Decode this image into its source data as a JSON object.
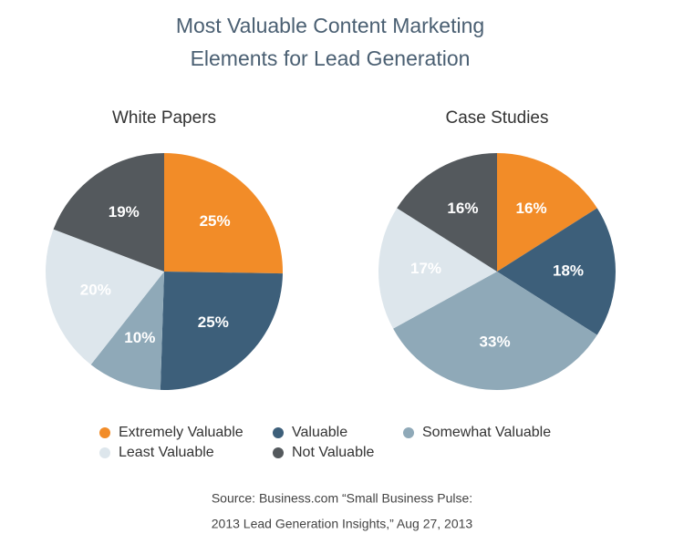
{
  "title": [
    "Most Valuable Content Marketing",
    "Elements for Lead Generation"
  ],
  "source": [
    "Source: Business.com “Small Business Pulse:",
    "2013 Lead Generation Insights,” Aug 27, 2013"
  ],
  "chart_data": [
    {
      "type": "pie",
      "title": "White Papers",
      "categories": [
        "Extremely Valuable",
        "Valuable",
        "Somewhat Valuable",
        "Least Valuable",
        "Not Valuable"
      ],
      "values": [
        25,
        25,
        10,
        20,
        19
      ],
      "value_labels": [
        "25%",
        "25%",
        "10%",
        "20%",
        "19%"
      ],
      "colors": [
        "#f28c28",
        "#3d5f7a",
        "#8fa9b8",
        "#dde6ec",
        "#54595d"
      ]
    },
    {
      "type": "pie",
      "title": "Case Studies",
      "categories": [
        "Extremely Valuable",
        "Valuable",
        "Somewhat Valuable",
        "Least Valuable",
        "Not Valuable"
      ],
      "values": [
        16,
        18,
        33,
        17,
        16
      ],
      "value_labels": [
        "16%",
        "18%",
        "33%",
        "17%",
        "16%"
      ],
      "colors": [
        "#f28c28",
        "#3d5f7a",
        "#8fa9b8",
        "#dde6ec",
        "#54595d"
      ]
    }
  ]
}
